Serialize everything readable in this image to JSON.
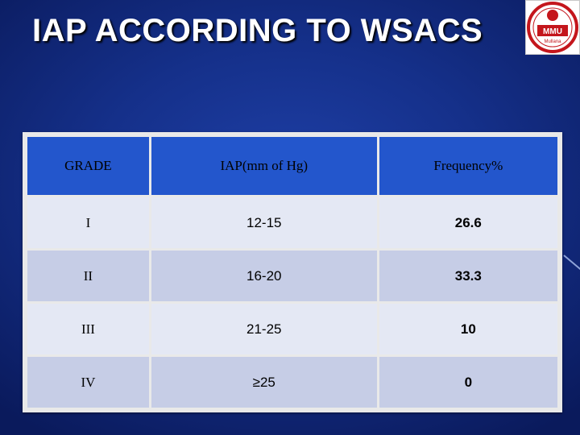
{
  "slide": {
    "title": "IAP ACCORDING TO WSACS",
    "logo_text": "MMU",
    "logo_subtext": "Mullana"
  },
  "table": {
    "headers": [
      "GRADE",
      "IAP(mm of Hg)",
      "Frequency%"
    ],
    "rows": [
      [
        "I",
        "12-15",
        "26.6"
      ],
      [
        "II",
        "16-20",
        "33.3"
      ],
      [
        "III",
        "21-25",
        "10"
      ],
      [
        "IV",
        "≥25",
        "0"
      ]
    ]
  },
  "colors": {
    "background": "#15308a",
    "header_fill": "#2356cc",
    "row_light": "#e4e8f4",
    "row_dark": "#c6cde6",
    "logo_red": "#c4161c"
  }
}
